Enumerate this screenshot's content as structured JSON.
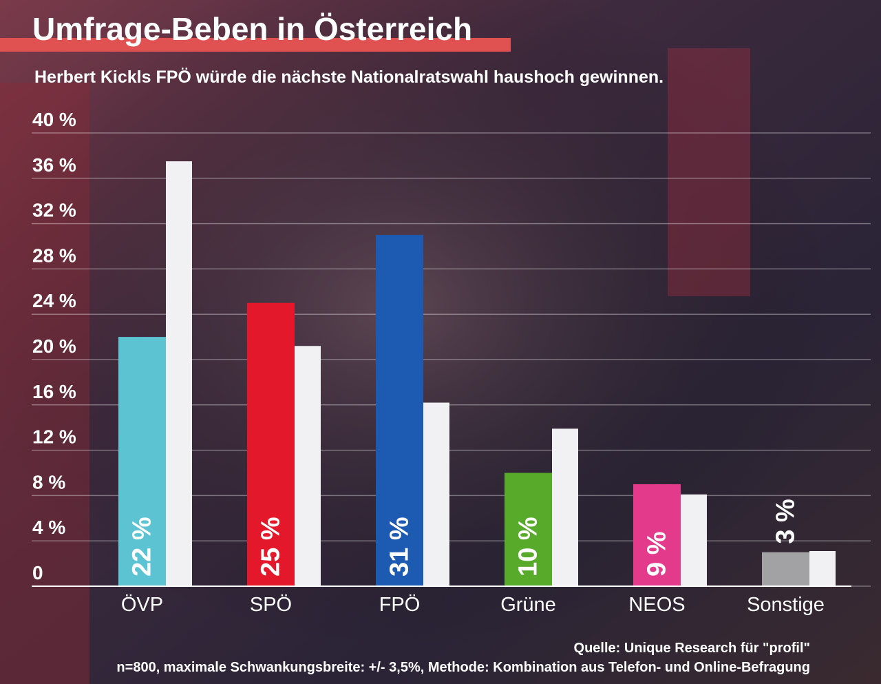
{
  "chart_data": {
    "type": "bar",
    "title": "Umfrage-Beben in Österreich",
    "subtitle": "Herbert Kickls FPÖ würde die nächste Nationalratswahl haushoch gewinnen.",
    "categories": [
      "ÖVP",
      "SPÖ",
      "FPÖ",
      "Grüne",
      "NEOS",
      "Sonstige"
    ],
    "series": [
      {
        "colors": [
          "#5cc3d2",
          "#e3182b",
          "#1d5bb2",
          "#58aa2a",
          "#e33a8c",
          "#a2a2a4"
        ],
        "values": [
          22,
          25,
          31,
          10,
          9,
          3
        ],
        "value_labels": [
          "22 %",
          "25 %",
          "31 %",
          "10 %",
          "9 %",
          "3 %"
        ]
      },
      {
        "color": "#f1f1f3",
        "values": [
          37.5,
          21.2,
          16.2,
          13.9,
          8.1,
          3.1
        ]
      }
    ],
    "ylim": [
      0,
      40
    ],
    "yticks": [
      0,
      {
        "value": 4,
        "label": "4 %"
      },
      {
        "value": 8,
        "label": "8 %"
      },
      {
        "value": 12,
        "label": "12 %"
      },
      {
        "value": 16,
        "label": "16 %"
      },
      {
        "value": 20,
        "label": "20 %"
      },
      {
        "value": 24,
        "label": "24 %"
      },
      {
        "value": 28,
        "label": "28 %"
      },
      {
        "value": 32,
        "label": "32 %"
      },
      {
        "value": 36,
        "label": "36 %"
      },
      {
        "value": 40,
        "label": "40 %"
      }
    ],
    "grid": true,
    "source": "Quelle: Unique Research für \"profil\"",
    "note": "n=800, maximale Schwankungsbreite: +/- 3,5%, Methode: Kombination aus Telefon- und Online-Befragung"
  }
}
